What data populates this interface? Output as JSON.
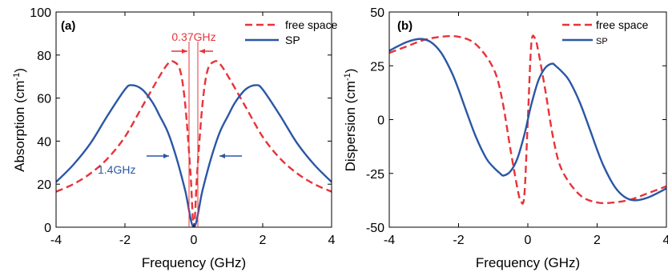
{
  "chart_data": [
    {
      "type": "line",
      "panel_label": "(a)",
      "xlabel": "Frequency (GHz)",
      "ylabel_main": "Absorption (cm",
      "ylabel_sup": "-1",
      "ylabel_close": ")",
      "xlim": [
        -4,
        4
      ],
      "ylim": [
        0,
        100
      ],
      "xticks": [
        -4,
        -2,
        0,
        2,
        4
      ],
      "yticks": [
        0,
        20,
        40,
        60,
        80,
        100
      ],
      "legend_position": "top-right",
      "annotations": [
        {
          "text": "0.37GHz",
          "color": "#e8333a"
        },
        {
          "text": "1.4GHz",
          "color": "#2a57a5"
        }
      ],
      "series": [
        {
          "name": "free space",
          "color": "#e8333a",
          "style": "dashed",
          "x": [
            -4.0,
            -3.5,
            -3.0,
            -2.5,
            -2.0,
            -1.5,
            -1.0,
            -0.75,
            -0.6,
            -0.4,
            -0.25,
            -0.1,
            0.0,
            0.1,
            0.25,
            0.4,
            0.6,
            0.75,
            1.0,
            1.5,
            2.0,
            2.5,
            3.0,
            3.5,
            4.0
          ],
          "y": [
            16.5,
            20,
            25,
            32,
            42,
            56,
            70,
            76,
            77,
            73,
            57,
            26,
            0,
            26,
            57,
            73,
            77,
            76,
            70,
            56,
            42,
            32,
            25,
            20,
            16.5
          ]
        },
        {
          "name": "SP",
          "color": "#2a57a5",
          "style": "solid",
          "x": [
            -4.0,
            -3.5,
            -3.0,
            -2.5,
            -2.0,
            -1.8,
            -1.5,
            -1.2,
            -1.0,
            -0.75,
            -0.5,
            -0.25,
            0.0,
            0.25,
            0.5,
            0.75,
            1.0,
            1.2,
            1.5,
            1.8,
            2.0,
            2.5,
            3.0,
            3.5,
            4.0
          ],
          "y": [
            21,
            29,
            39,
            52,
            64,
            66,
            64,
            58,
            52,
            44,
            32,
            17,
            0,
            17,
            32,
            44,
            52,
            58,
            64,
            66,
            64,
            52,
            39,
            29,
            21
          ]
        }
      ]
    },
    {
      "type": "line",
      "panel_label": "(b)",
      "xlabel": "Frequency (GHz)",
      "ylabel_main": "Dispersion (cm",
      "ylabel_sup": "-1",
      "ylabel_close": ")",
      "xlim": [
        -4,
        4
      ],
      "ylim": [
        -50,
        50
      ],
      "xticks": [
        -4,
        -2,
        0,
        2,
        4
      ],
      "yticks": [
        -50,
        -25,
        0,
        25,
        50
      ],
      "legend_position": "top-right",
      "series": [
        {
          "name": "free space",
          "color": "#e8333a",
          "style": "dashed",
          "x": [
            -4.0,
            -3.5,
            -3.0,
            -2.5,
            -2.0,
            -1.5,
            -1.0,
            -0.75,
            -0.5,
            -0.3,
            -0.2,
            -0.1,
            0.0,
            0.1,
            0.2,
            0.3,
            0.5,
            0.75,
            1.0,
            1.5,
            2.0,
            2.5,
            3.0,
            3.5,
            4.0
          ],
          "y": [
            31,
            34,
            37,
            38.5,
            38.5,
            35,
            24,
            10,
            -14,
            -32,
            -38,
            -35,
            0,
            35,
            38,
            32,
            14,
            -10,
            -24,
            -35,
            -38.5,
            -38.5,
            -37,
            -34,
            -31
          ]
        },
        {
          "name": "SP",
          "color": "#2a57a5",
          "style": "solid",
          "x": [
            -4.0,
            -3.5,
            -3.1,
            -2.8,
            -2.5,
            -2.2,
            -2.0,
            -1.8,
            -1.5,
            -1.2,
            -1.0,
            -0.8,
            -0.7,
            -0.5,
            -0.3,
            -0.1,
            0.0,
            0.1,
            0.3,
            0.5,
            0.7,
            0.8,
            1.0,
            1.2,
            1.5,
            1.8,
            2.0,
            2.2,
            2.5,
            2.8,
            3.1,
            3.5,
            4.0
          ],
          "y": [
            32,
            36,
            37.5,
            36,
            31,
            22,
            14,
            5,
            -8,
            -18,
            -22,
            -25,
            -26,
            -24,
            -18,
            -7,
            0,
            7,
            18,
            24,
            26,
            25,
            22,
            18,
            8,
            -5,
            -14,
            -22,
            -31,
            -36,
            -37.5,
            -36,
            -32
          ]
        }
      ]
    }
  ]
}
